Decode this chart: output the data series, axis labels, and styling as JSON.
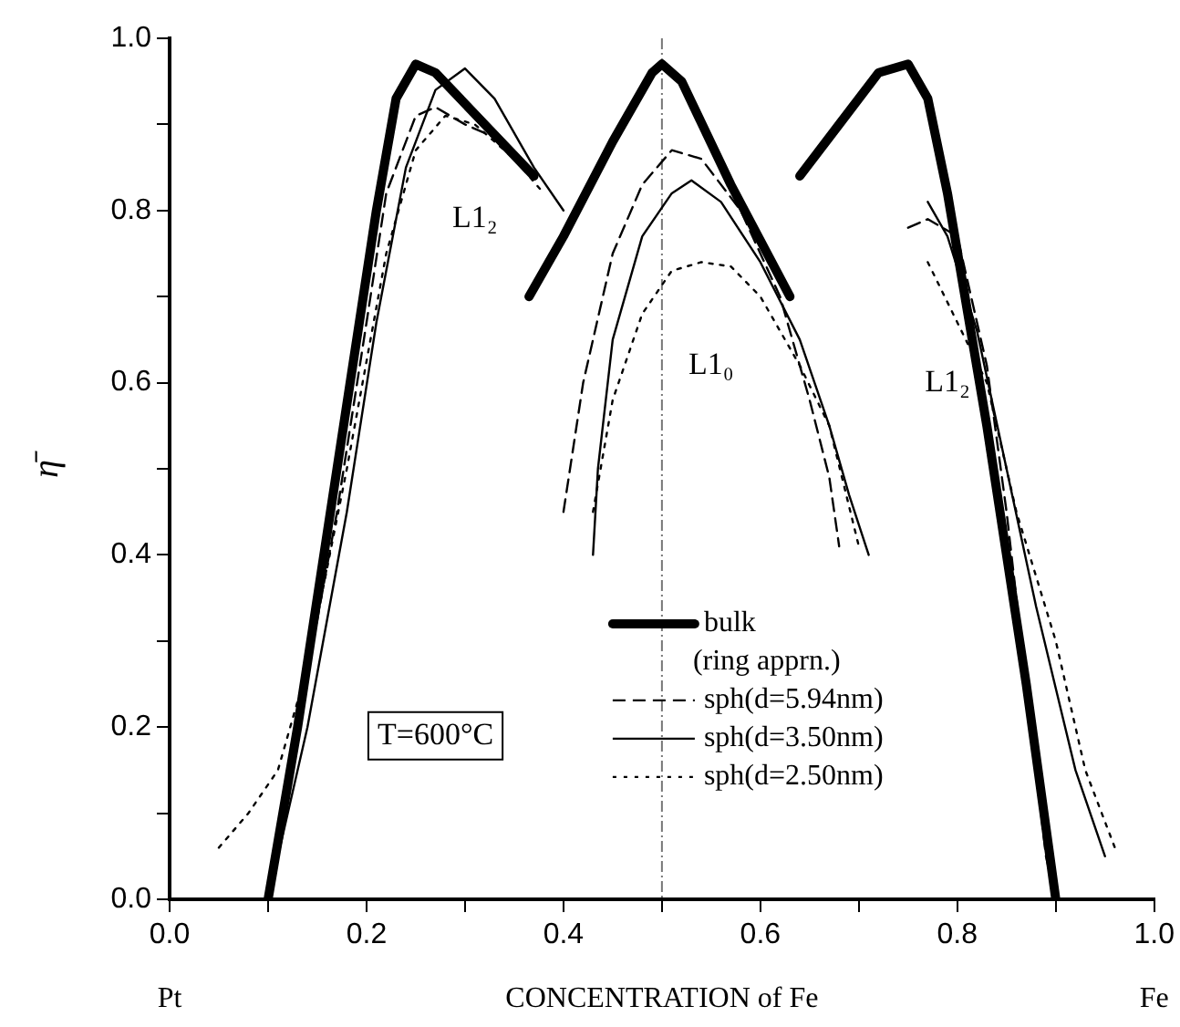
{
  "chart_data": {
    "type": "line",
    "xlabel": "CONCENTRATION of Fe",
    "ylabel": "η̄",
    "xlim": [
      0,
      1
    ],
    "ylim": [
      0,
      1
    ],
    "xticks": [
      {
        "value": 0,
        "label": "0.0"
      },
      {
        "value": 0.1,
        "label": null
      },
      {
        "value": 0.2,
        "label": "0.2"
      },
      {
        "value": 0.3,
        "label": null
      },
      {
        "value": 0.4,
        "label": "0.4"
      },
      {
        "value": 0.5,
        "label": null
      },
      {
        "value": 0.6,
        "label": "0.6"
      },
      {
        "value": 0.7,
        "label": null
      },
      {
        "value": 0.8,
        "label": "0.8"
      },
      {
        "value": 0.9,
        "label": null
      },
      {
        "value": 1,
        "label": "1.0"
      }
    ],
    "yticks": [
      {
        "value": 0,
        "label": "0.0"
      },
      {
        "value": 0.1,
        "label": null
      },
      {
        "value": 0.2,
        "label": "0.2"
      },
      {
        "value": 0.3,
        "label": null
      },
      {
        "value": 0.4,
        "label": "0.4"
      },
      {
        "value": 0.5,
        "label": null
      },
      {
        "value": 0.6,
        "label": "0.6"
      },
      {
        "value": 0.7,
        "label": null
      },
      {
        "value": 0.8,
        "label": "0.8"
      },
      {
        "value": 0.9,
        "label": null
      },
      {
        "value": 1,
        "label": "1.0"
      }
    ],
    "grid": false,
    "legend": "bottom right",
    "marker": "none",
    "ref_lines": [
      {
        "axis": "x",
        "value": 0.5,
        "color": "#777777",
        "line_style": "dashed"
      }
    ],
    "annotations": [
      "L1₂",
      "L1₀",
      "L1₂",
      "T=600°C",
      "Pt",
      "Fe"
    ],
    "series": [
      {
        "name": "bulk (ring apprn.)",
        "color": "#000000",
        "line_style": "solid",
        "x": [
          0.1,
          0.13,
          0.17,
          0.21,
          0.23,
          0.25,
          0.27,
          0.32,
          0.37,
          0.368,
          0.365,
          0.4,
          0.45,
          0.49,
          0.5,
          0.52,
          0.57,
          0.63,
          0.635,
          0.64,
          0.68,
          0.72,
          0.75,
          0.77,
          0.79,
          0.83,
          0.87,
          0.9
        ],
        "values": [
          0,
          0.2,
          0.5,
          0.8,
          0.93,
          0.97,
          0.96,
          0.9,
          0.84,
          null,
          0.7,
          0.77,
          0.88,
          0.96,
          0.97,
          0.95,
          0.83,
          0.7,
          null,
          0.84,
          0.9,
          0.96,
          0.97,
          0.93,
          0.82,
          0.55,
          0.25,
          0
        ]
      },
      {
        "name": "sph(d=5.94nm)",
        "color": "#000000",
        "line_style": "dashed",
        "x": [
          0.1,
          0.13,
          0.17,
          0.2,
          0.22,
          0.25,
          0.27,
          0.3,
          0.34,
          0.37,
          0.4,
          0.42,
          0.45,
          0.48,
          0.51,
          0.54,
          0.58,
          0.62,
          0.65,
          0.67,
          0.68,
          0.72,
          0.75,
          0.77,
          0.8,
          0.83,
          0.85,
          0.87,
          0.89,
          0.9
        ],
        "values": [
          0,
          0.2,
          0.45,
          0.67,
          0.82,
          0.91,
          0.92,
          0.9,
          0.88,
          null,
          0.45,
          0.6,
          0.75,
          0.83,
          0.87,
          0.86,
          0.8,
          0.7,
          0.58,
          0.49,
          0.41,
          null,
          0.78,
          0.79,
          0.77,
          0.62,
          0.45,
          0.25,
          0.05,
          0
        ]
      },
      {
        "name": "sph(d=3.50nm)",
        "color": "#000000",
        "line_style": "solid",
        "x": [
          0.1,
          0.14,
          0.18,
          0.21,
          0.24,
          0.27,
          0.3,
          0.33,
          0.37,
          0.4,
          0.42,
          0.43,
          0.435,
          0.45,
          0.48,
          0.51,
          0.53,
          0.56,
          0.6,
          0.64,
          0.67,
          0.69,
          0.71,
          0.74,
          0.77,
          0.79,
          0.82,
          0.85,
          0.88,
          0.92,
          0.95
        ],
        "values": [
          0,
          0.2,
          0.45,
          0.67,
          0.85,
          0.94,
          0.965,
          0.93,
          0.85,
          0.8,
          null,
          0.4,
          0.5,
          0.65,
          0.77,
          0.82,
          0.835,
          0.81,
          0.74,
          0.65,
          0.55,
          0.47,
          0.4,
          null,
          0.81,
          0.77,
          0.66,
          0.5,
          0.34,
          0.15,
          0.05
        ]
      },
      {
        "name": "sph(d=2.50nm)",
        "color": "#000000",
        "line_style": "dotted",
        "x": [
          0.05,
          0.08,
          0.11,
          0.14,
          0.18,
          0.22,
          0.25,
          0.28,
          0.31,
          0.35,
          0.38,
          0.4,
          0.43,
          0.45,
          0.48,
          0.51,
          0.54,
          0.57,
          0.6,
          0.64,
          0.67,
          0.7,
          0.74,
          0.77,
          0.8,
          0.83,
          0.86,
          0.9,
          0.93,
          0.96
        ],
        "values": [
          0.06,
          0.1,
          0.15,
          0.27,
          0.5,
          0.75,
          0.87,
          0.91,
          0.9,
          0.86,
          0.82,
          null,
          0.45,
          0.58,
          0.68,
          0.73,
          0.74,
          0.735,
          0.7,
          0.62,
          0.55,
          0.41,
          null,
          0.74,
          0.67,
          0.6,
          0.45,
          0.3,
          0.15,
          0.06
        ]
      }
    ]
  }
}
